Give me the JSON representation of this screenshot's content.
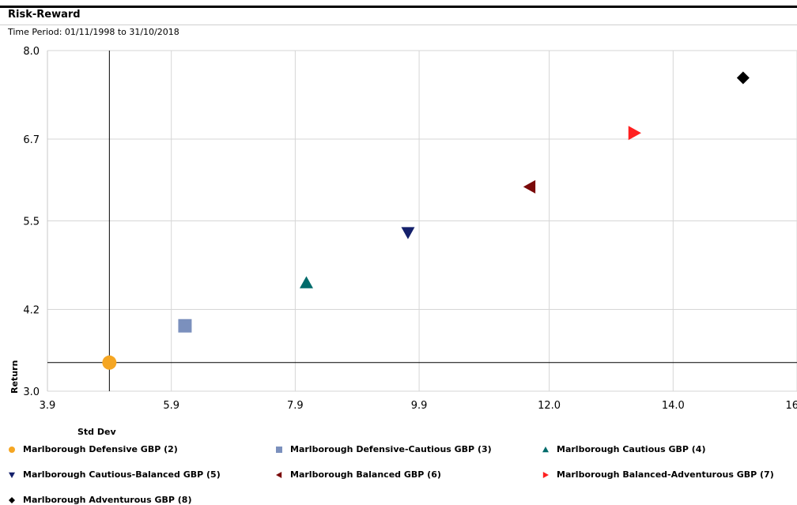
{
  "header": {
    "title": "Risk-Reward",
    "time_period": "Time Period: 01/11/1998 to 31/10/2018"
  },
  "chart_data": {
    "type": "scatter",
    "title": "Risk-Reward",
    "subtitle": "Time Period: 01/11/1998 to 31/10/2018",
    "xlabel": "Std Dev",
    "ylabel": "Return",
    "xlim": [
      3.9,
      16.0
    ],
    "ylim": [
      3.0,
      8.0
    ],
    "x_ticks": [
      "3.9",
      "5.9",
      "7.9",
      "9.9",
      "12.0",
      "14.0",
      "16.0"
    ],
    "x_tick_values": [
      3.9,
      5.9,
      7.9,
      9.9,
      12.0,
      14.0,
      16.0
    ],
    "y_ticks": [
      "3.0",
      "4.2",
      "5.5",
      "6.7",
      "8.0"
    ],
    "y_tick_values": [
      3.0,
      4.2,
      5.5,
      6.7,
      8.0
    ],
    "grid": true,
    "reference_lines": {
      "x": 4.9,
      "y": 3.42
    },
    "legend_position": "bottom",
    "series": [
      {
        "name": "Marlborough Defensive GBP (2)",
        "x": 4.9,
        "y": 3.42,
        "marker": "circle",
        "color": "#f5a623"
      },
      {
        "name": "Marlborough Defensive-Cautious GBP (3)",
        "x": 6.12,
        "y": 3.96,
        "marker": "square",
        "color": "#7b90bd"
      },
      {
        "name": "Marlborough Cautious GBP (4)",
        "x": 8.08,
        "y": 4.59,
        "marker": "triangle-up",
        "color": "#006b6b"
      },
      {
        "name": "Marlborough Cautious-Balanced GBP (5)",
        "x": 9.72,
        "y": 5.33,
        "marker": "triangle-down",
        "color": "#14206b"
      },
      {
        "name": "Marlborough Balanced GBP (6)",
        "x": 11.69,
        "y": 6.0,
        "marker": "triangle-left",
        "color": "#7a0a0a"
      },
      {
        "name": "Marlborough Balanced-Adventurous GBP (7)",
        "x": 13.37,
        "y": 6.79,
        "marker": "triangle-right",
        "color": "#ff2020"
      },
      {
        "name": "Marlborough Adventurous GBP (8)",
        "x": 15.13,
        "y": 7.6,
        "marker": "diamond",
        "color": "#000000"
      }
    ]
  }
}
